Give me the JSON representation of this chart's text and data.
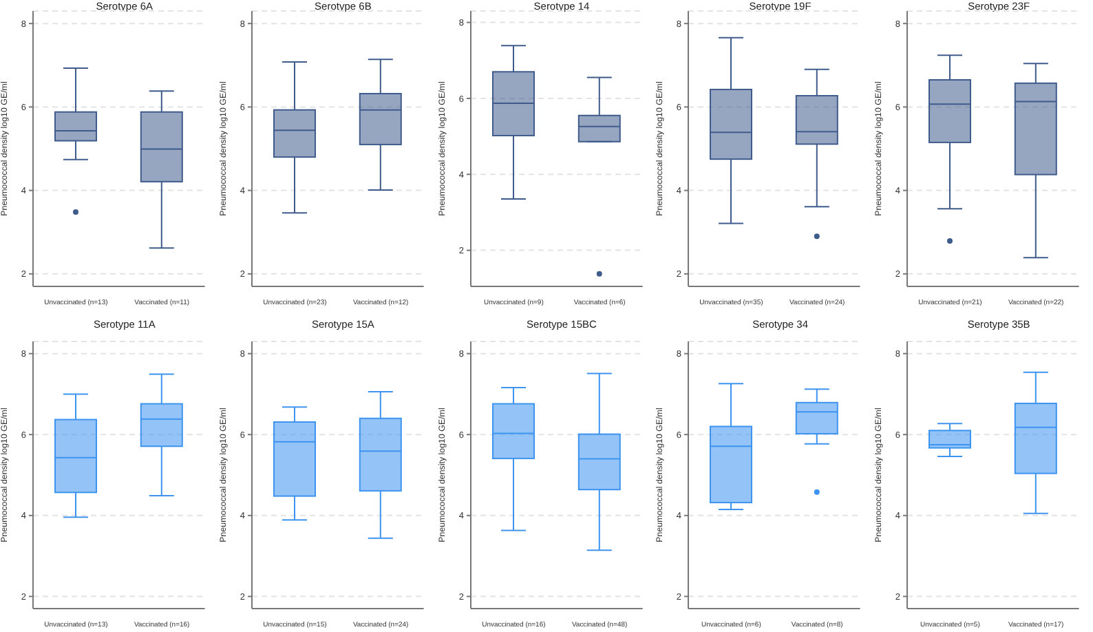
{
  "chart_data": [
    {
      "type": "box",
      "title": "Serotype 6A",
      "ylabel": "Pneumococcal density log10 GE/ml",
      "categories": [
        "Unvaccinated (n=13)",
        "Vaccinated (n=11)"
      ],
      "ylim": [
        1.7,
        8.3
      ],
      "yticks": [
        2,
        4,
        6,
        8
      ],
      "grid": "y",
      "series": [
        {
          "color": "#3f5b8c",
          "boxes": [
            {
              "low": 4.74,
              "q1": 5.19,
              "median": 5.43,
              "q3": 5.88,
              "high": 6.93,
              "outliers": [
                3.48
              ]
            },
            {
              "low": 2.62,
              "q1": 4.21,
              "median": 4.99,
              "q3": 5.88,
              "high": 6.38
            }
          ]
        }
      ]
    },
    {
      "type": "box",
      "title": "Serotype 6B",
      "ylabel": "Pneumococcal density log10 GE/ml",
      "categories": [
        "Unvaccinated (n=23)",
        "Vaccinated (n=12)"
      ],
      "ylim": [
        1.7,
        8.3
      ],
      "yticks": [
        2,
        4,
        6,
        8
      ],
      "grid": "y",
      "series": [
        {
          "color": "#3f5b8c",
          "boxes": [
            {
              "low": 3.46,
              "q1": 4.8,
              "median": 5.44,
              "q3": 5.93,
              "high": 7.08
            },
            {
              "low": 4.01,
              "q1": 5.1,
              "median": 5.93,
              "q3": 6.32,
              "high": 7.14
            }
          ]
        }
      ]
    },
    {
      "type": "box",
      "title": "Serotype 14",
      "ylabel": "Pneumococcal density log10 GE/ml",
      "categories": [
        "Unvaccinated (n=9)",
        "Vaccinated (n=6)"
      ],
      "ylim": [
        1.05,
        8.3
      ],
      "yticks": [
        2,
        4,
        6,
        8
      ],
      "grid": "y",
      "series": [
        {
          "color": "#3f5b8c",
          "boxes": [
            {
              "low": 3.35,
              "q1": 5.02,
              "median": 5.87,
              "q3": 6.7,
              "high": 7.39
            },
            {
              "low": 4.86,
              "q1": 4.86,
              "median": 5.26,
              "q3": 5.55,
              "high": 6.55,
              "outliers": [
                1.38
              ]
            }
          ]
        }
      ]
    },
    {
      "type": "box",
      "title": "Serotype 19F",
      "ylabel": "Pneumococcal density log10 GE/ml",
      "categories": [
        "Unvaccinated (n=35)",
        "Vaccinated (n=24)"
      ],
      "ylim": [
        1.7,
        8.3
      ],
      "yticks": [
        2,
        4,
        6,
        8
      ],
      "grid": "y",
      "series": [
        {
          "color": "#3f5b8c",
          "boxes": [
            {
              "low": 3.21,
              "q1": 4.75,
              "median": 5.39,
              "q3": 6.42,
              "high": 7.66
            },
            {
              "low": 3.61,
              "q1": 5.11,
              "median": 5.41,
              "q3": 6.27,
              "high": 6.9,
              "outliers": [
                2.9
              ]
            }
          ]
        }
      ]
    },
    {
      "type": "box",
      "title": "Serotype 23F",
      "ylabel": "Pneumococcal density log10 GE/ml",
      "categories": [
        "Unvaccinated (n=21)",
        "Vaccinated (n=22)"
      ],
      "ylim": [
        1.7,
        8.3
      ],
      "yticks": [
        2,
        4,
        6,
        8
      ],
      "grid": "y",
      "series": [
        {
          "color": "#3f5b8c",
          "boxes": [
            {
              "low": 3.56,
              "q1": 5.15,
              "median": 6.07,
              "q3": 6.65,
              "high": 7.24,
              "outliers": [
                2.79
              ]
            },
            {
              "low": 2.39,
              "q1": 4.38,
              "median": 6.13,
              "q3": 6.57,
              "high": 7.04
            }
          ]
        }
      ]
    },
    {
      "type": "box",
      "title": "Serotype 11A",
      "ylabel": "Pneumococcal density log10 GE/ml",
      "categories": [
        "Unvaccinated (n=13)",
        "Vaccinated (n=16)"
      ],
      "ylim": [
        1.7,
        8.3
      ],
      "yticks": [
        2,
        4,
        6,
        8
      ],
      "grid": "y",
      "series": [
        {
          "color": "#3d93f0",
          "boxes": [
            {
              "low": 3.96,
              "q1": 4.57,
              "median": 5.43,
              "q3": 6.37,
              "high": 7.0
            },
            {
              "low": 4.49,
              "q1": 5.71,
              "median": 6.38,
              "q3": 6.76,
              "high": 7.49
            }
          ]
        }
      ]
    },
    {
      "type": "box",
      "title": "Serotype 15A",
      "ylabel": "Pneumococcal density log10 GE/ml",
      "categories": [
        "Unvaccinated (n=15)",
        "Vaccinated (n=24)"
      ],
      "ylim": [
        1.7,
        8.3
      ],
      "yticks": [
        2,
        4,
        6,
        8
      ],
      "grid": "y",
      "series": [
        {
          "color": "#3d93f0",
          "boxes": [
            {
              "low": 3.89,
              "q1": 4.48,
              "median": 5.82,
              "q3": 6.31,
              "high": 6.68
            },
            {
              "low": 3.44,
              "q1": 4.61,
              "median": 5.59,
              "q3": 6.4,
              "high": 7.06
            }
          ]
        }
      ]
    },
    {
      "type": "box",
      "title": "Serotype 15BC",
      "ylabel": "Pneumococcal density log10 GE/ml",
      "categories": [
        "Unvaccinated (n=16)",
        "Vaccinated (n=48)"
      ],
      "ylim": [
        1.7,
        8.3
      ],
      "yticks": [
        2,
        4,
        6,
        8
      ],
      "grid": "y",
      "series": [
        {
          "color": "#3d93f0",
          "boxes": [
            {
              "low": 3.63,
              "q1": 5.41,
              "median": 6.03,
              "q3": 6.76,
              "high": 7.16
            },
            {
              "low": 3.14,
              "q1": 4.64,
              "median": 5.4,
              "q3": 6.01,
              "high": 7.51
            }
          ]
        }
      ]
    },
    {
      "type": "box",
      "title": "Serotype 34",
      "ylabel": "Pneumococcal density log10 GE/ml",
      "categories": [
        "Unvaccinated (n=6)",
        "Vaccinated (n=8)"
      ],
      "ylim": [
        1.7,
        8.3
      ],
      "yticks": [
        2,
        4,
        6,
        8
      ],
      "grid": "y",
      "series": [
        {
          "color": "#3d93f0",
          "boxes": [
            {
              "low": 4.15,
              "q1": 4.32,
              "median": 5.71,
              "q3": 6.2,
              "high": 7.26
            },
            {
              "low": 5.77,
              "q1": 6.02,
              "median": 6.56,
              "q3": 6.79,
              "high": 7.12,
              "outliers": [
                4.58
              ]
            }
          ]
        }
      ]
    },
    {
      "type": "box",
      "title": "Serotype 35B",
      "ylabel": "Pneumococcal density log10 GE/ml",
      "categories": [
        "Unvaccinated (n=5)",
        "Vaccinated (n=17)"
      ],
      "ylim": [
        1.7,
        8.3
      ],
      "yticks": [
        2,
        4,
        6,
        8
      ],
      "grid": "y",
      "series": [
        {
          "color": "#3d93f0",
          "boxes": [
            {
              "low": 5.46,
              "q1": 5.67,
              "median": 5.75,
              "q3": 6.1,
              "high": 6.27
            },
            {
              "low": 4.05,
              "q1": 5.04,
              "median": 6.18,
              "q3": 6.77,
              "high": 7.54
            }
          ]
        }
      ]
    }
  ]
}
